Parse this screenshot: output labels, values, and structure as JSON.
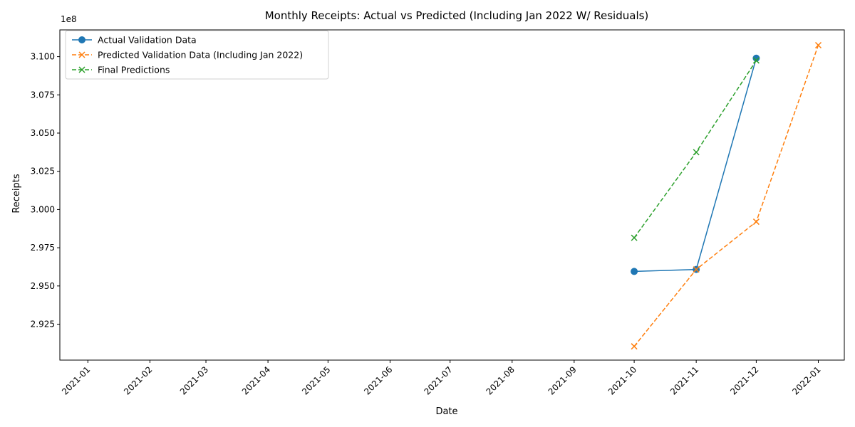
{
  "chart_data": {
    "type": "line",
    "title": "Monthly Receipts: Actual vs Predicted (Including Jan 2022 W/ Residuals)",
    "xlabel": "Date",
    "ylabel": "Receipts",
    "y_scale_factor_label": "1e8",
    "x_tick_labels": [
      "2021-01",
      "2021-02",
      "2021-03",
      "2021-04",
      "2021-05",
      "2021-06",
      "2021-07",
      "2021-08",
      "2021-09",
      "2021-10",
      "2021-11",
      "2021-12",
      "2022-01"
    ],
    "y_ticks": [
      2.925,
      2.95,
      2.975,
      3.0,
      3.025,
      3.05,
      3.075,
      3.1
    ],
    "y_tick_labels": [
      "2.925",
      "2.950",
      "2.975",
      "3.000",
      "3.025",
      "3.050",
      "3.075",
      "3.100"
    ],
    "xlim": [
      "2020-12-18",
      "2022-01-14"
    ],
    "ylim": [
      2.9015,
      3.1175
    ],
    "grid": false,
    "legend_position": "top-left",
    "series": [
      {
        "name": "Actual Validation Data",
        "color": "#1f77b4",
        "line_style": "solid",
        "marker": "circle",
        "x": [
          "2021-10-01",
          "2021-11-01",
          "2021-12-01"
        ],
        "y": [
          2.9595,
          2.9608,
          3.099
        ]
      },
      {
        "name": "Predicted Validation Data (Including Jan 2022)",
        "color": "#ff7f0e",
        "line_style": "dashed",
        "marker": "x",
        "x": [
          "2021-10-01",
          "2021-11-01",
          "2021-12-01",
          "2022-01-01"
        ],
        "y": [
          2.9105,
          2.9608,
          2.992,
          3.1075
        ]
      },
      {
        "name": "Final Predictions",
        "color": "#2ca02c",
        "line_style": "dashed",
        "marker": "x",
        "x": [
          "2021-10-01",
          "2021-11-01",
          "2021-12-01"
        ],
        "y": [
          2.9815,
          3.0375,
          3.0975
        ]
      }
    ]
  }
}
